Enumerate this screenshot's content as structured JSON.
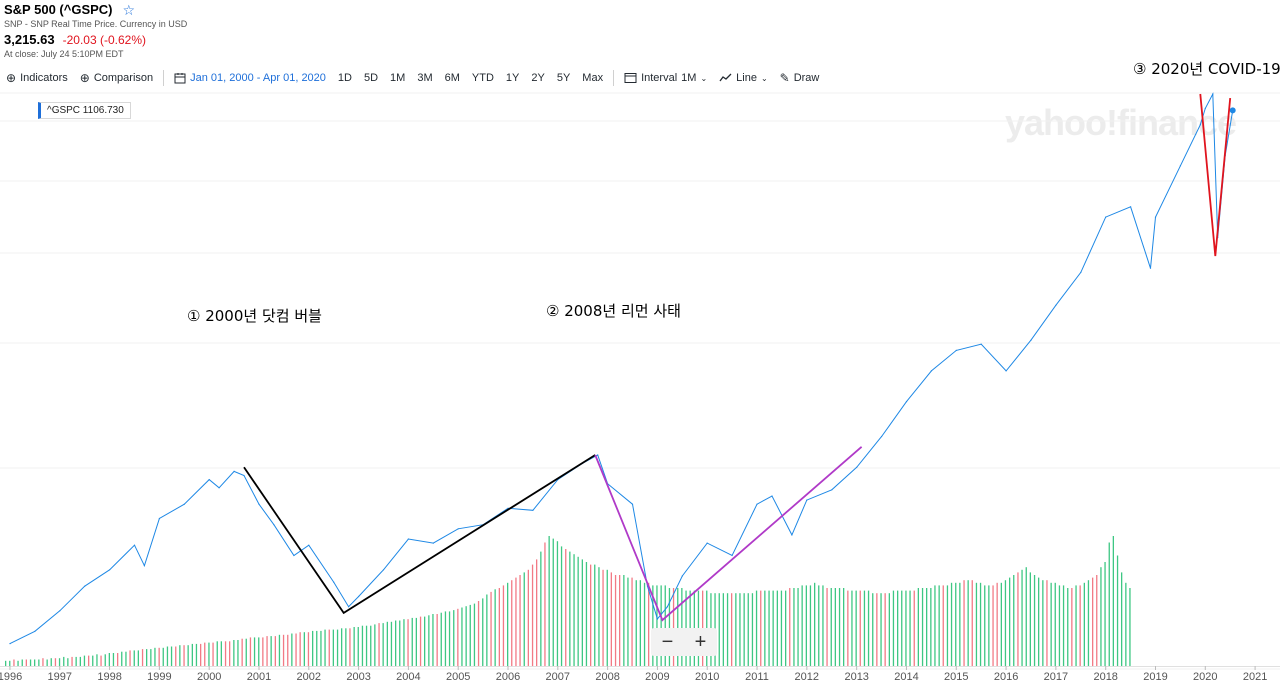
{
  "header": {
    "title": "S&P 500 (^GSPC)",
    "subtitle": "SNP - SNP Real Time Price. Currency in USD",
    "price": "3,215.63",
    "change": "-20.03 (-0.62%)",
    "close_time": "At close: July 24 5:10PM EDT"
  },
  "toolbar": {
    "indicators": "Indicators",
    "comparison": "Comparison",
    "date_range": "Jan 01, 2000 - Apr 01, 2020",
    "periods": [
      "1D",
      "5D",
      "1M",
      "3M",
      "6M",
      "YTD",
      "1Y",
      "2Y",
      "5Y",
      "Max"
    ],
    "interval_label": "Interval",
    "interval_value": "1M",
    "chart_type": "Line",
    "draw": "Draw"
  },
  "legend": {
    "label": "^GSPC 1106.730"
  },
  "watermark": "yahoo!finance",
  "annotations": {
    "a1": "① 2000년 닷컴 버블",
    "a2": "② 2008년 리먼 사태",
    "a3": "③ 2020년 COVID-19"
  },
  "zoom": {
    "minus": "−",
    "plus": "+"
  },
  "colors": {
    "line": "#1e88e5",
    "vol_up": "#3ec783",
    "vol_down": "#f27a85",
    "trend_2000": "#000000",
    "trend_2008": "#b03ac8",
    "trend_2020": "#e0141e"
  },
  "chart_data": {
    "type": "line",
    "series": [
      {
        "name": "^GSPC",
        "x": [
          1996.0,
          1996.5,
          1997.0,
          1997.5,
          1998.0,
          1998.5,
          1998.7,
          1999.0,
          1999.5,
          2000.0,
          2000.2,
          2000.5,
          2000.7,
          2001.0,
          2001.3,
          2001.7,
          2002.0,
          2002.5,
          2002.8,
          2003.0,
          2003.5,
          2004.0,
          2004.5,
          2005.0,
          2005.5,
          2006.0,
          2006.5,
          2007.0,
          2007.5,
          2007.8,
          2008.0,
          2008.5,
          2008.8,
          2009.0,
          2009.2,
          2009.5,
          2010.0,
          2010.5,
          2011.0,
          2011.3,
          2011.7,
          2012.0,
          2012.5,
          2013.0,
          2013.5,
          2014.0,
          2014.5,
          2015.0,
          2015.5,
          2016.0,
          2016.5,
          2017.0,
          2017.5,
          2018.0,
          2018.5,
          2018.9,
          2019.0,
          2019.5,
          2019.9,
          2020.0,
          2020.15,
          2020.25,
          2020.4,
          2020.55
        ],
        "values": [
          620,
          680,
          780,
          900,
          980,
          1100,
          1000,
          1230,
          1300,
          1420,
          1380,
          1460,
          1440,
          1300,
          1200,
          1050,
          1100,
          920,
          800,
          850,
          980,
          1130,
          1110,
          1180,
          1200,
          1280,
          1270,
          1420,
          1500,
          1540,
          1400,
          1300,
          900,
          740,
          800,
          950,
          1110,
          1050,
          1300,
          1340,
          1150,
          1320,
          1370,
          1480,
          1630,
          1800,
          1950,
          2050,
          2080,
          1950,
          2100,
          2270,
          2430,
          2700,
          2750,
          2450,
          2700,
          2950,
          3150,
          3230,
          3300,
          2600,
          3000,
          3220
        ],
        "values_gap_note": ""
      }
    ],
    "xlabel": "",
    "ylabel": "",
    "x_ticks": [
      1996,
      1997,
      1998,
      1999,
      2000,
      2001,
      2002,
      2003,
      2004,
      2005,
      2006,
      2007,
      2008,
      2009,
      2010,
      2011,
      2012,
      2013,
      2014,
      2015,
      2016,
      2017,
      2018,
      2019,
      2020,
      2021
    ],
    "xlim": [
      1995.8,
      2021.5
    ],
    "ylim": [
      550,
      3300
    ],
    "grid": true,
    "volume": {
      "x_start": 1995.9,
      "step": 0.0833,
      "values": [
        0.04,
        0.04,
        0.05,
        0.04,
        0.05,
        0.05,
        0.05,
        0.05,
        0.05,
        0.06,
        0.05,
        0.06,
        0.06,
        0.06,
        0.07,
        0.06,
        0.07,
        0.07,
        0.07,
        0.08,
        0.08,
        0.08,
        0.09,
        0.08,
        0.09,
        0.1,
        0.1,
        0.1,
        0.11,
        0.11,
        0.12,
        0.12,
        0.12,
        0.13,
        0.13,
        0.13,
        0.14,
        0.14,
        0.14,
        0.15,
        0.15,
        0.15,
        0.16,
        0.16,
        0.16,
        0.17,
        0.17,
        0.17,
        0.18,
        0.18,
        0.18,
        0.19,
        0.19,
        0.19,
        0.19,
        0.2,
        0.2,
        0.21,
        0.21,
        0.22,
        0.22,
        0.22,
        0.22,
        0.23,
        0.23,
        0.23,
        0.24,
        0.24,
        0.24,
        0.25,
        0.25,
        0.26,
        0.26,
        0.26,
        0.27,
        0.27,
        0.27,
        0.28,
        0.28,
        0.28,
        0.28,
        0.29,
        0.29,
        0.29,
        0.3,
        0.3,
        0.31,
        0.31,
        0.31,
        0.32,
        0.33,
        0.33,
        0.34,
        0.34,
        0.35,
        0.35,
        0.36,
        0.36,
        0.37,
        0.37,
        0.38,
        0.38,
        0.39,
        0.4,
        0.4,
        0.41,
        0.42,
        0.42,
        0.43,
        0.44,
        0.45,
        0.46,
        0.47,
        0.48,
        0.5,
        0.52,
        0.55,
        0.57,
        0.59,
        0.6,
        0.62,
        0.64,
        0.66,
        0.68,
        0.7,
        0.72,
        0.74,
        0.78,
        0.82,
        0.88,
        0.95,
        1.0,
        0.98,
        0.96,
        0.92,
        0.9,
        0.88,
        0.86,
        0.84,
        0.82,
        0.8,
        0.78,
        0.78,
        0.76,
        0.74,
        0.74,
        0.72,
        0.7,
        0.7,
        0.7,
        0.68,
        0.68,
        0.66,
        0.66,
        0.64,
        0.64,
        0.62,
        0.62,
        0.62,
        0.62,
        0.6,
        0.6,
        0.6,
        0.6,
        0.58,
        0.58,
        0.58,
        0.58,
        0.58,
        0.58,
        0.56,
        0.56,
        0.56,
        0.56,
        0.56,
        0.56,
        0.56,
        0.56,
        0.56,
        0.56,
        0.56,
        0.58,
        0.58,
        0.58,
        0.58,
        0.58,
        0.58,
        0.58,
        0.58,
        0.6,
        0.6,
        0.6,
        0.62,
        0.62,
        0.62,
        0.64,
        0.62,
        0.62,
        0.6,
        0.6,
        0.6,
        0.6,
        0.6,
        0.58,
        0.58,
        0.58,
        0.58,
        0.58,
        0.58,
        0.56,
        0.56,
        0.56,
        0.56,
        0.56,
        0.58,
        0.58,
        0.58,
        0.58,
        0.58,
        0.58,
        0.6,
        0.6,
        0.6,
        0.6,
        0.62,
        0.62,
        0.62,
        0.62,
        0.64,
        0.64,
        0.64,
        0.66,
        0.66,
        0.66,
        0.64,
        0.64,
        0.62,
        0.62,
        0.62,
        0.64,
        0.64,
        0.66,
        0.68,
        0.7,
        0.72,
        0.74,
        0.76,
        0.72,
        0.7,
        0.68,
        0.66,
        0.66,
        0.64,
        0.64,
        0.62,
        0.62,
        0.6,
        0.6,
        0.62,
        0.62,
        0.64,
        0.66,
        0.68,
        0.7,
        0.76,
        0.8,
        0.95,
        1.0,
        0.85,
        0.72,
        0.64,
        0.6
      ],
      "down": [
        0,
        0,
        1,
        0,
        0,
        1,
        0,
        0,
        0,
        1,
        0,
        0,
        1,
        0,
        0,
        0,
        1,
        0,
        0,
        0,
        1,
        0,
        0,
        1,
        0,
        0,
        0,
        1,
        0,
        0,
        1,
        0,
        0,
        1,
        0,
        0,
        0,
        1,
        0,
        0,
        0,
        1,
        0,
        1,
        0,
        0,
        0,
        1,
        1,
        0,
        1,
        0,
        0,
        1,
        1,
        0,
        0,
        1,
        0,
        1,
        0,
        0,
        1,
        1,
        0,
        1,
        0,
        1,
        1,
        0,
        1,
        1,
        0,
        1,
        0,
        0,
        0,
        0,
        1,
        0,
        0,
        0,
        0,
        1,
        0,
        0,
        0,
        0,
        0,
        0,
        1,
        0,
        0,
        0,
        0,
        0,
        0,
        1,
        0,
        0,
        1,
        0,
        0,
        0,
        1,
        0,
        0,
        0,
        0,
        1,
        0,
        0,
        0,
        0,
        1,
        0,
        0,
        1,
        0,
        1,
        1,
        0,
        1,
        1,
        1,
        0,
        1,
        1,
        1,
        0,
        1,
        0,
        0,
        0,
        0,
        1,
        0,
        0,
        0,
        0,
        0,
        1,
        0,
        0,
        1,
        0,
        1,
        1,
        1,
        0,
        0,
        1,
        0,
        0,
        0,
        1,
        0,
        0,
        0,
        0,
        0,
        1,
        0,
        0,
        0,
        0,
        0,
        0,
        1,
        0,
        0,
        0,
        0,
        0,
        0,
        1,
        0,
        0,
        0,
        0,
        0,
        0,
        1,
        0,
        0,
        0,
        0,
        0,
        0,
        1,
        0,
        0,
        0,
        0,
        0,
        0,
        0,
        0,
        1,
        0,
        0,
        0,
        0,
        1,
        0,
        0,
        1,
        0,
        0,
        0,
        1,
        0,
        1,
        0,
        0,
        0,
        0,
        0,
        0,
        1,
        0,
        0,
        0,
        0,
        0,
        0,
        1,
        0,
        0,
        0,
        0,
        1,
        0,
        1,
        0,
        0,
        0,
        0,
        1,
        1,
        0,
        0,
        0,
        0,
        1,
        0,
        0,
        0,
        0,
        0,
        0,
        1,
        0,
        0,
        0,
        0,
        0,
        1,
        0,
        1,
        0,
        0,
        1,
        1,
        0,
        0,
        0,
        0
      ]
    },
    "trendlines": [
      {
        "color_key": "trend_2000",
        "points": [
          [
            2000.7,
            1480
          ],
          [
            2002.7,
            770
          ],
          [
            2007.75,
            1540
          ]
        ]
      },
      {
        "color_key": "trend_2008",
        "points": [
          [
            2007.75,
            1540
          ],
          [
            2009.1,
            735
          ],
          [
            2013.1,
            1580
          ]
        ]
      },
      {
        "color_key": "trend_2020",
        "points": [
          [
            2019.9,
            3300
          ],
          [
            2020.2,
            2510
          ],
          [
            2020.5,
            3280
          ]
        ]
      }
    ]
  }
}
